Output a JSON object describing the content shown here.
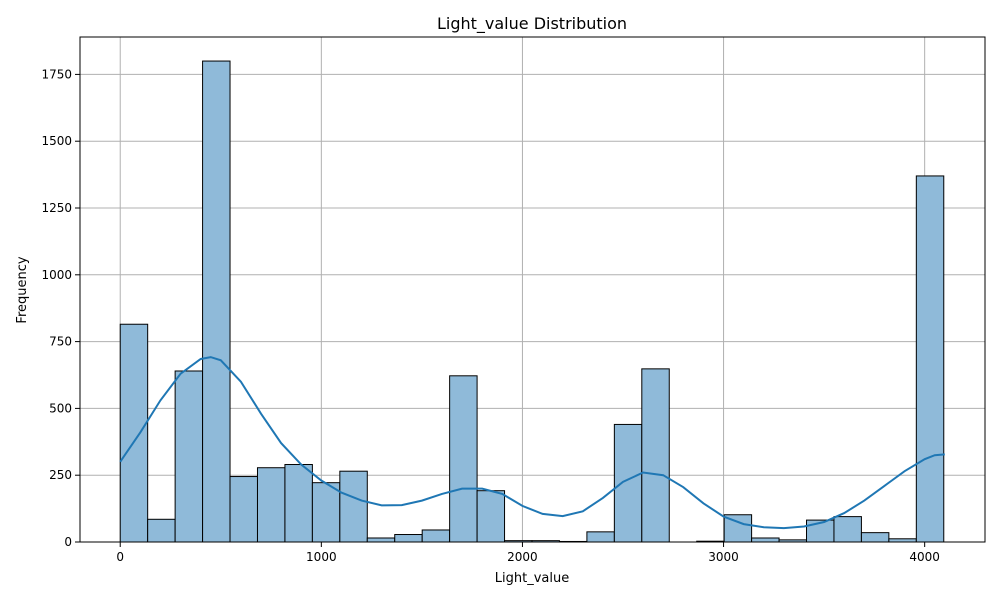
{
  "chart_data": {
    "type": "bar",
    "title": "Light_value Distribution",
    "xlabel": "Light_value",
    "ylabel": "Frequency",
    "xlim": [
      -200,
      4300
    ],
    "ylim": [
      0,
      1890
    ],
    "x_ticks": [
      0,
      1000,
      2000,
      3000,
      4000
    ],
    "y_ticks": [
      0,
      250,
      500,
      750,
      1000,
      1250,
      1500,
      1750
    ],
    "grid": true,
    "bar_color": "#8fbad9",
    "bar_edge_color": "#000000",
    "kde_color": "#1f77b4",
    "bins": {
      "start": 0,
      "width": 136.5,
      "counts": [
        815,
        85,
        640,
        1800,
        245,
        278,
        290,
        222,
        265,
        15,
        28,
        45,
        622,
        192,
        5,
        5,
        2,
        38,
        440,
        648,
        0,
        3,
        102,
        15,
        8,
        82,
        95,
        35,
        12,
        1370
      ]
    },
    "kde": {
      "x": [
        0,
        100,
        200,
        300,
        400,
        450,
        500,
        600,
        700,
        800,
        900,
        1000,
        1100,
        1200,
        1300,
        1400,
        1500,
        1600,
        1700,
        1800,
        1900,
        2000,
        2100,
        2200,
        2300,
        2400,
        2500,
        2600,
        2700,
        2800,
        2900,
        3000,
        3100,
        3200,
        3300,
        3400,
        3500,
        3600,
        3700,
        3800,
        3900,
        4000,
        4050,
        4100
      ],
      "y": [
        300,
        410,
        530,
        630,
        685,
        692,
        680,
        600,
        480,
        370,
        290,
        230,
        185,
        155,
        137,
        138,
        155,
        180,
        200,
        200,
        180,
        135,
        105,
        97,
        115,
        165,
        225,
        260,
        250,
        205,
        145,
        95,
        67,
        55,
        52,
        58,
        75,
        108,
        155,
        210,
        265,
        310,
        325,
        328
      ]
    }
  }
}
